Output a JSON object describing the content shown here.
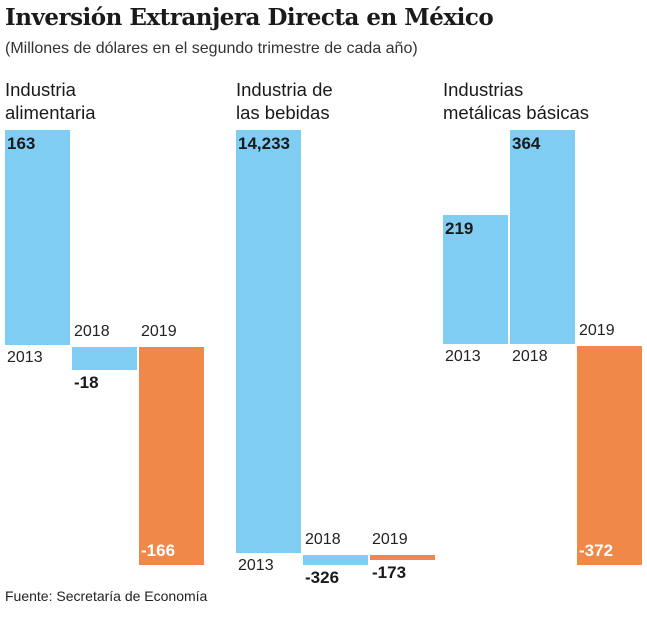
{
  "title": "Inversión Extranjera Directa en México",
  "subtitle": "(Millones de dólares en el segundo trimestre de cada año)",
  "source": "Fuente: Secretaría de Economía",
  "colors": {
    "positive": "#80cdf3",
    "negative": "#f08849"
  },
  "chart_data": [
    {
      "type": "bar",
      "title": "Industria\nalimentaria",
      "categories": [
        "2013",
        "2018",
        "2019"
      ],
      "values": [
        163,
        -18,
        -166
      ],
      "labels": [
        "163",
        "-18",
        "-166"
      ]
    },
    {
      "type": "bar",
      "title": "Industria de\nlas bebidas",
      "categories": [
        "2013",
        "2018",
        "2019"
      ],
      "values": [
        14233,
        -326,
        -173
      ],
      "labels": [
        "14,233",
        "-326",
        "-173"
      ]
    },
    {
      "type": "bar",
      "title": "Industrias\nmetálicas básicas",
      "categories": [
        "2013",
        "2018",
        "2019"
      ],
      "values": [
        219,
        364,
        -372
      ],
      "labels": [
        "219",
        "364",
        "-372"
      ]
    }
  ]
}
